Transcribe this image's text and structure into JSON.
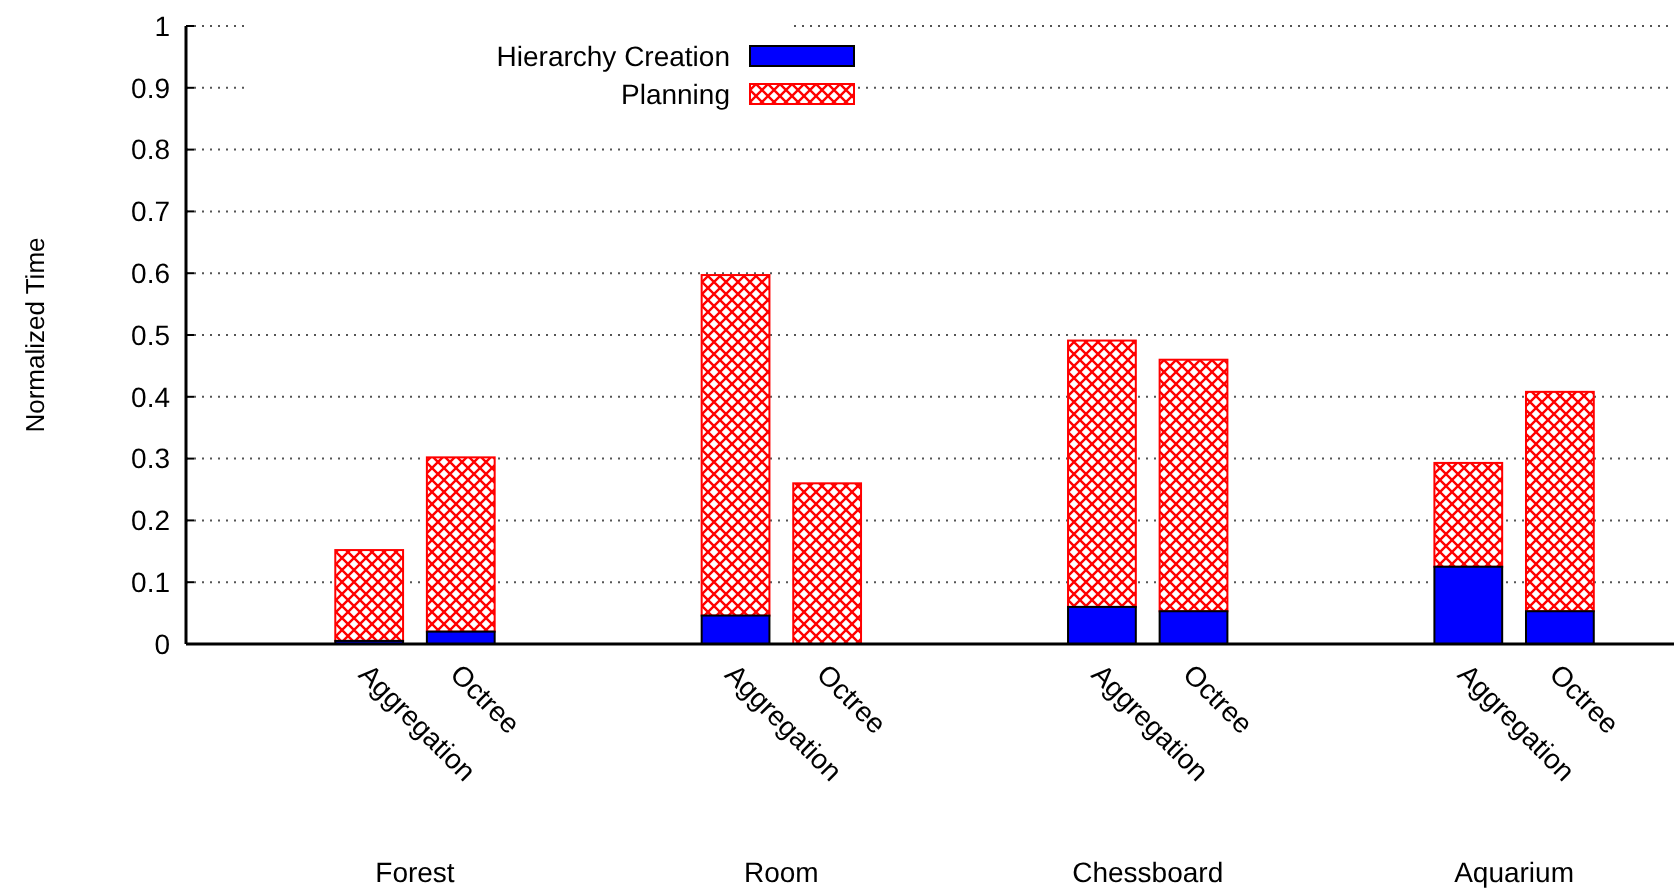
{
  "chart_data": {
    "type": "bar",
    "stacked": true,
    "ylabel": "Normalized Time",
    "categories": [
      "Aggregation",
      "Octree",
      "Aggregation",
      "Octree",
      "Aggregation",
      "Octree",
      "Aggregation",
      "Octree"
    ],
    "series": [
      {
        "name": "Hierarchy Creation",
        "color": "#0000ff",
        "values": [
          0.005,
          0.02,
          0.046,
          0,
          0.06,
          0.053,
          0.125,
          0.053
        ]
      },
      {
        "name": "Planning",
        "color": "#ff0000",
        "values": [
          0.147,
          0.282,
          0.551,
          0.26,
          0.431,
          0.407,
          0.168,
          0.355
        ]
      }
    ],
    "ylim": [
      0,
      1
    ],
    "yticks": [
      0,
      0.1,
      0.2,
      0.3,
      0.4,
      0.5,
      0.6,
      0.7,
      0.8,
      0.9,
      1
    ],
    "grid": "y",
    "legend": "top left",
    "annotations": [
      "Forest",
      "Room",
      "Chessboard",
      "Aquarium"
    ]
  }
}
